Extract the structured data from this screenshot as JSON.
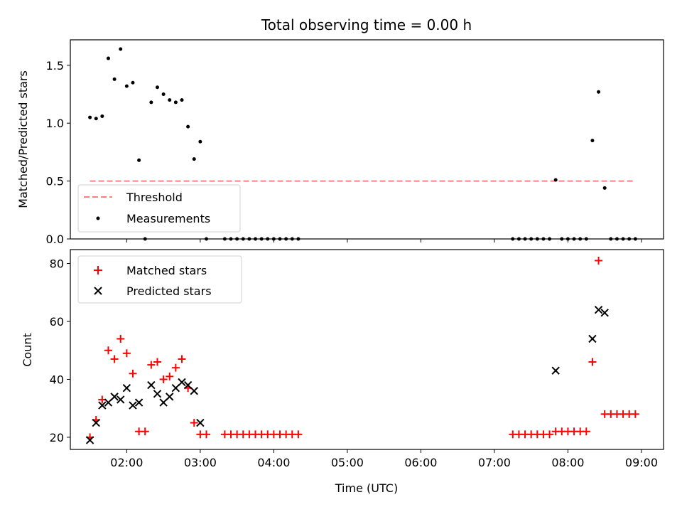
{
  "chart_data": [
    {
      "type": "scatter",
      "title": "Total observing time = 0.00 h",
      "xlabel": "",
      "ylabel": "Matched/Predicted stars",
      "xlim": [
        "01:14",
        "09:18"
      ],
      "ylim": [
        0,
        1.72
      ],
      "yticks": [
        0.0,
        0.5,
        1.0,
        1.5
      ],
      "ytick_labels": [
        "0.0",
        "0.5",
        "1.0",
        "1.5"
      ],
      "legend": {
        "placement": "lower-left",
        "entries": [
          "Threshold",
          "Measurements"
        ]
      },
      "threshold": {
        "name": "Threshold",
        "value": 0.5,
        "x_range": [
          "01:30",
          "08:55"
        ],
        "color": "#ff7f7f",
        "style": "dashed"
      },
      "series": [
        {
          "name": "Measurements",
          "marker": "dot",
          "color": "#000000",
          "points": [
            {
              "x": "01:30",
              "y": 1.05
            },
            {
              "x": "01:35",
              "y": 1.04
            },
            {
              "x": "01:40",
              "y": 1.06
            },
            {
              "x": "01:45",
              "y": 1.56
            },
            {
              "x": "01:50",
              "y": 1.38
            },
            {
              "x": "01:55",
              "y": 1.64
            },
            {
              "x": "02:00",
              "y": 1.32
            },
            {
              "x": "02:05",
              "y": 1.35
            },
            {
              "x": "02:10",
              "y": 0.68
            },
            {
              "x": "02:15",
              "y": 0.0
            },
            {
              "x": "02:20",
              "y": 1.18
            },
            {
              "x": "02:25",
              "y": 1.31
            },
            {
              "x": "02:30",
              "y": 1.25
            },
            {
              "x": "02:35",
              "y": 1.2
            },
            {
              "x": "02:40",
              "y": 1.18
            },
            {
              "x": "02:45",
              "y": 1.2
            },
            {
              "x": "02:50",
              "y": 0.97
            },
            {
              "x": "02:55",
              "y": 0.69
            },
            {
              "x": "03:00",
              "y": 0.84
            },
            {
              "x": "03:05",
              "y": 0.0
            },
            {
              "x": "03:20",
              "y": 0.0
            },
            {
              "x": "03:25",
              "y": 0.0
            },
            {
              "x": "03:30",
              "y": 0.0
            },
            {
              "x": "03:35",
              "y": 0.0
            },
            {
              "x": "03:40",
              "y": 0.0
            },
            {
              "x": "03:45",
              "y": 0.0
            },
            {
              "x": "03:50",
              "y": 0.0
            },
            {
              "x": "03:55",
              "y": 0.0
            },
            {
              "x": "04:00",
              "y": 0.0
            },
            {
              "x": "04:05",
              "y": 0.0
            },
            {
              "x": "04:10",
              "y": 0.0
            },
            {
              "x": "04:15",
              "y": 0.0
            },
            {
              "x": "04:20",
              "y": 0.0
            },
            {
              "x": "07:15",
              "y": 0.0
            },
            {
              "x": "07:20",
              "y": 0.0
            },
            {
              "x": "07:25",
              "y": 0.0
            },
            {
              "x": "07:30",
              "y": 0.0
            },
            {
              "x": "07:35",
              "y": 0.0
            },
            {
              "x": "07:40",
              "y": 0.0
            },
            {
              "x": "07:45",
              "y": 0.0
            },
            {
              "x": "07:50",
              "y": 0.51
            },
            {
              "x": "07:55",
              "y": 0.0
            },
            {
              "x": "08:00",
              "y": 0.0
            },
            {
              "x": "08:05",
              "y": 0.0
            },
            {
              "x": "08:10",
              "y": 0.0
            },
            {
              "x": "08:15",
              "y": 0.0
            },
            {
              "x": "08:20",
              "y": 0.85
            },
            {
              "x": "08:25",
              "y": 1.27
            },
            {
              "x": "08:30",
              "y": 0.44
            },
            {
              "x": "08:35",
              "y": 0.0
            },
            {
              "x": "08:40",
              "y": 0.0
            },
            {
              "x": "08:45",
              "y": 0.0
            },
            {
              "x": "08:50",
              "y": 0.0
            },
            {
              "x": "08:55",
              "y": 0.0
            }
          ]
        }
      ]
    },
    {
      "type": "scatter",
      "title": "",
      "xlabel": "Time (UTC)",
      "ylabel": "Count",
      "xlim": [
        "01:14",
        "09:18"
      ],
      "ylim": [
        15.8,
        84.8
      ],
      "xticks": [
        "02:00",
        "03:00",
        "04:00",
        "05:00",
        "06:00",
        "07:00",
        "08:00",
        "09:00"
      ],
      "yticks": [
        20,
        40,
        60,
        80
      ],
      "ytick_labels": [
        "20",
        "40",
        "60",
        "80"
      ],
      "legend": {
        "placement": "upper-left",
        "entries": [
          "Matched stars",
          "Predicted stars"
        ]
      },
      "series": [
        {
          "name": "Matched stars",
          "marker": "plus",
          "color": "#ff0000",
          "points": [
            {
              "x": "01:30",
              "y": 20
            },
            {
              "x": "01:35",
              "y": 26
            },
            {
              "x": "01:40",
              "y": 33
            },
            {
              "x": "01:45",
              "y": 50
            },
            {
              "x": "01:50",
              "y": 47
            },
            {
              "x": "01:55",
              "y": 54
            },
            {
              "x": "02:00",
              "y": 49
            },
            {
              "x": "02:05",
              "y": 42
            },
            {
              "x": "02:10",
              "y": 22
            },
            {
              "x": "02:15",
              "y": 22
            },
            {
              "x": "02:20",
              "y": 45
            },
            {
              "x": "02:25",
              "y": 46
            },
            {
              "x": "02:30",
              "y": 40
            },
            {
              "x": "02:35",
              "y": 41
            },
            {
              "x": "02:40",
              "y": 44
            },
            {
              "x": "02:45",
              "y": 47
            },
            {
              "x": "02:50",
              "y": 37
            },
            {
              "x": "02:55",
              "y": 25
            },
            {
              "x": "03:00",
              "y": 21
            },
            {
              "x": "03:05",
              "y": 21
            },
            {
              "x": "03:20",
              "y": 21
            },
            {
              "x": "03:25",
              "y": 21
            },
            {
              "x": "03:30",
              "y": 21
            },
            {
              "x": "03:35",
              "y": 21
            },
            {
              "x": "03:40",
              "y": 21
            },
            {
              "x": "03:45",
              "y": 21
            },
            {
              "x": "03:50",
              "y": 21
            },
            {
              "x": "03:55",
              "y": 21
            },
            {
              "x": "04:00",
              "y": 21
            },
            {
              "x": "04:05",
              "y": 21
            },
            {
              "x": "04:10",
              "y": 21
            },
            {
              "x": "04:15",
              "y": 21
            },
            {
              "x": "04:20",
              "y": 21
            },
            {
              "x": "07:15",
              "y": 21
            },
            {
              "x": "07:20",
              "y": 21
            },
            {
              "x": "07:25",
              "y": 21
            },
            {
              "x": "07:30",
              "y": 21
            },
            {
              "x": "07:35",
              "y": 21
            },
            {
              "x": "07:40",
              "y": 21
            },
            {
              "x": "07:45",
              "y": 21
            },
            {
              "x": "07:50",
              "y": 22
            },
            {
              "x": "07:55",
              "y": 22
            },
            {
              "x": "08:00",
              "y": 22
            },
            {
              "x": "08:05",
              "y": 22
            },
            {
              "x": "08:10",
              "y": 22
            },
            {
              "x": "08:15",
              "y": 22
            },
            {
              "x": "08:20",
              "y": 46
            },
            {
              "x": "08:25",
              "y": 81
            },
            {
              "x": "08:30",
              "y": 28
            },
            {
              "x": "08:35",
              "y": 28
            },
            {
              "x": "08:40",
              "y": 28
            },
            {
              "x": "08:45",
              "y": 28
            },
            {
              "x": "08:50",
              "y": 28
            },
            {
              "x": "08:55",
              "y": 28
            }
          ]
        },
        {
          "name": "Predicted stars",
          "marker": "x",
          "color": "#000000",
          "points": [
            {
              "x": "01:30",
              "y": 19
            },
            {
              "x": "01:35",
              "y": 25
            },
            {
              "x": "01:40",
              "y": 31
            },
            {
              "x": "01:45",
              "y": 32
            },
            {
              "x": "01:50",
              "y": 34
            },
            {
              "x": "01:55",
              "y": 33
            },
            {
              "x": "02:00",
              "y": 37
            },
            {
              "x": "02:05",
              "y": 31
            },
            {
              "x": "02:10",
              "y": 32
            },
            {
              "x": "02:20",
              "y": 38
            },
            {
              "x": "02:25",
              "y": 35
            },
            {
              "x": "02:30",
              "y": 32
            },
            {
              "x": "02:35",
              "y": 34
            },
            {
              "x": "02:40",
              "y": 37
            },
            {
              "x": "02:45",
              "y": 39
            },
            {
              "x": "02:50",
              "y": 38
            },
            {
              "x": "02:55",
              "y": 36
            },
            {
              "x": "03:00",
              "y": 25
            },
            {
              "x": "07:50",
              "y": 43
            },
            {
              "x": "08:20",
              "y": 54
            },
            {
              "x": "08:25",
              "y": 64
            },
            {
              "x": "08:30",
              "y": 63
            }
          ]
        }
      ]
    }
  ]
}
